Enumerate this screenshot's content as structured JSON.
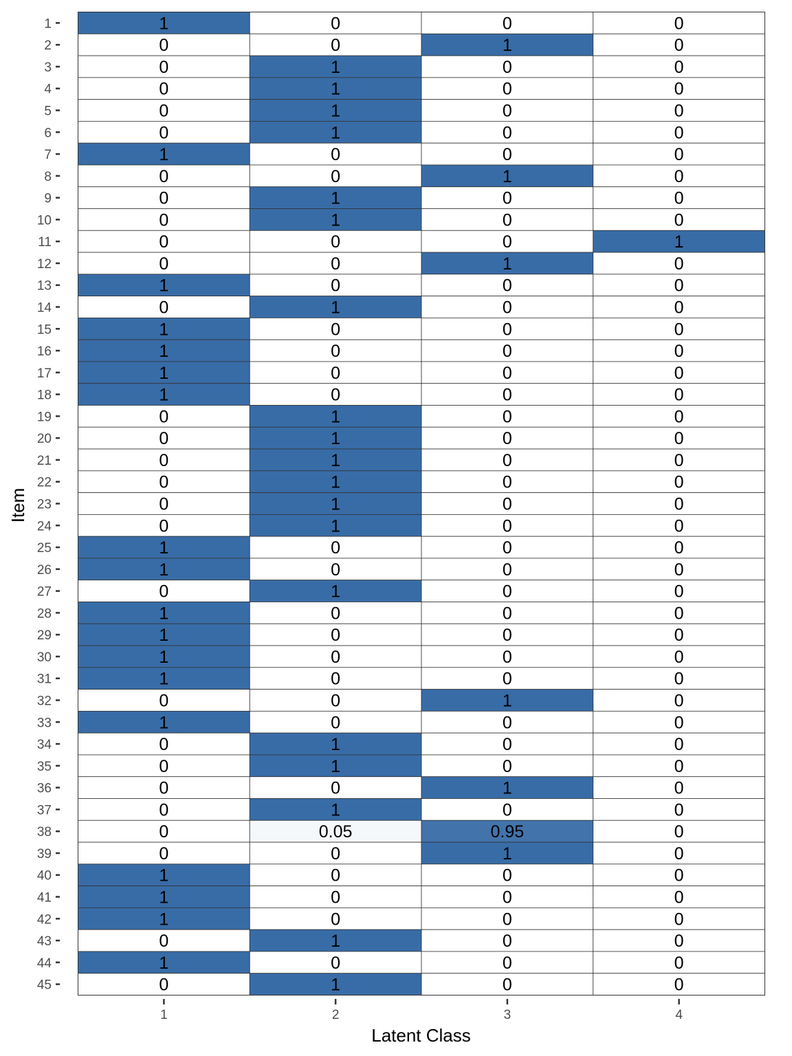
{
  "chart_data": {
    "type": "heatmap",
    "xlabel": "Latent Class",
    "ylabel": "Item",
    "x_categories": [
      "1",
      "2",
      "3",
      "4"
    ],
    "y_categories": [
      "1",
      "2",
      "3",
      "4",
      "5",
      "6",
      "7",
      "8",
      "9",
      "10",
      "11",
      "12",
      "13",
      "14",
      "15",
      "16",
      "17",
      "18",
      "19",
      "20",
      "21",
      "22",
      "23",
      "24",
      "25",
      "26",
      "27",
      "28",
      "29",
      "30",
      "31",
      "32",
      "33",
      "34",
      "35",
      "36",
      "37",
      "38",
      "39",
      "40",
      "41",
      "42",
      "43",
      "44",
      "45"
    ],
    "values": [
      [
        "1",
        "0",
        "0",
        "0"
      ],
      [
        "0",
        "0",
        "1",
        "0"
      ],
      [
        "0",
        "1",
        "0",
        "0"
      ],
      [
        "0",
        "1",
        "0",
        "0"
      ],
      [
        "0",
        "1",
        "0",
        "0"
      ],
      [
        "0",
        "1",
        "0",
        "0"
      ],
      [
        "1",
        "0",
        "0",
        "0"
      ],
      [
        "0",
        "0",
        "1",
        "0"
      ],
      [
        "0",
        "1",
        "0",
        "0"
      ],
      [
        "0",
        "1",
        "0",
        "0"
      ],
      [
        "0",
        "0",
        "0",
        "1"
      ],
      [
        "0",
        "0",
        "1",
        "0"
      ],
      [
        "1",
        "0",
        "0",
        "0"
      ],
      [
        "0",
        "1",
        "0",
        "0"
      ],
      [
        "1",
        "0",
        "0",
        "0"
      ],
      [
        "1",
        "0",
        "0",
        "0"
      ],
      [
        "1",
        "0",
        "0",
        "0"
      ],
      [
        "1",
        "0",
        "0",
        "0"
      ],
      [
        "0",
        "1",
        "0",
        "0"
      ],
      [
        "0",
        "1",
        "0",
        "0"
      ],
      [
        "0",
        "1",
        "0",
        "0"
      ],
      [
        "0",
        "1",
        "0",
        "0"
      ],
      [
        "0",
        "1",
        "0",
        "0"
      ],
      [
        "0",
        "1",
        "0",
        "0"
      ],
      [
        "1",
        "0",
        "0",
        "0"
      ],
      [
        "1",
        "0",
        "0",
        "0"
      ],
      [
        "0",
        "1",
        "0",
        "0"
      ],
      [
        "1",
        "0",
        "0",
        "0"
      ],
      [
        "1",
        "0",
        "0",
        "0"
      ],
      [
        "1",
        "0",
        "0",
        "0"
      ],
      [
        "1",
        "0",
        "0",
        "0"
      ],
      [
        "0",
        "0",
        "1",
        "0"
      ],
      [
        "1",
        "0",
        "0",
        "0"
      ],
      [
        "0",
        "1",
        "0",
        "0"
      ],
      [
        "0",
        "1",
        "0",
        "0"
      ],
      [
        "0",
        "0",
        "1",
        "0"
      ],
      [
        "0",
        "1",
        "0",
        "0"
      ],
      [
        "0",
        "0.05",
        "0.95",
        "0"
      ],
      [
        "0",
        "0",
        "1",
        "0"
      ],
      [
        "1",
        "0",
        "0",
        "0"
      ],
      [
        "1",
        "0",
        "0",
        "0"
      ],
      [
        "1",
        "0",
        "0",
        "0"
      ],
      [
        "0",
        "1",
        "0",
        "0"
      ],
      [
        "1",
        "0",
        "0",
        "0"
      ],
      [
        "0",
        "1",
        "0",
        "0"
      ]
    ],
    "color_low": "#ffffff",
    "color_high": "#386ca7",
    "grid": false,
    "legend": "none"
  }
}
